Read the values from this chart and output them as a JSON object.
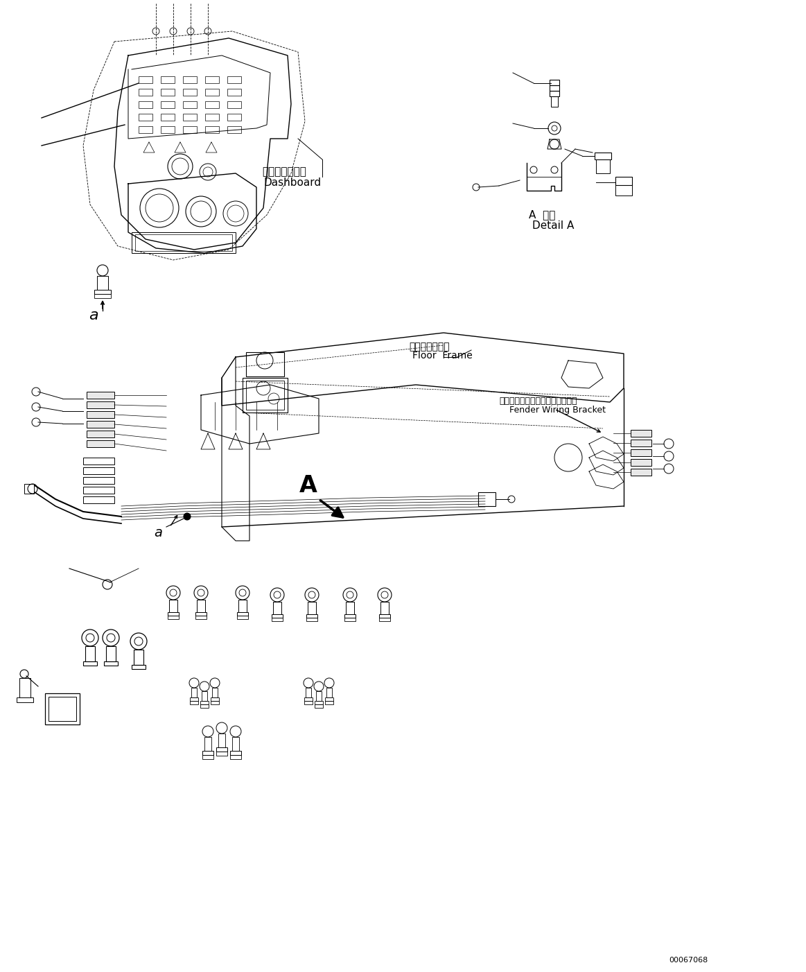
{
  "background_color": "#ffffff",
  "figure_width": 11.63,
  "figure_height": 14.02,
  "part_number": "00067068",
  "labels": {
    "dashboard_jp": "ダッシュボード",
    "dashboard_en": "Dashboard",
    "detail_a_jp": "A  詳細",
    "detail_a_en": "Detail A",
    "floor_frame_jp": "フロアフレーム",
    "floor_frame_en": "Floor  Frame",
    "fender_wiring_jp": "フェンダワイヤリングブラケット",
    "fender_wiring_en": "Fender Wiring Bracket",
    "label_A": "A",
    "label_a": "a"
  },
  "line_color": "#000000",
  "lw": 0.8
}
